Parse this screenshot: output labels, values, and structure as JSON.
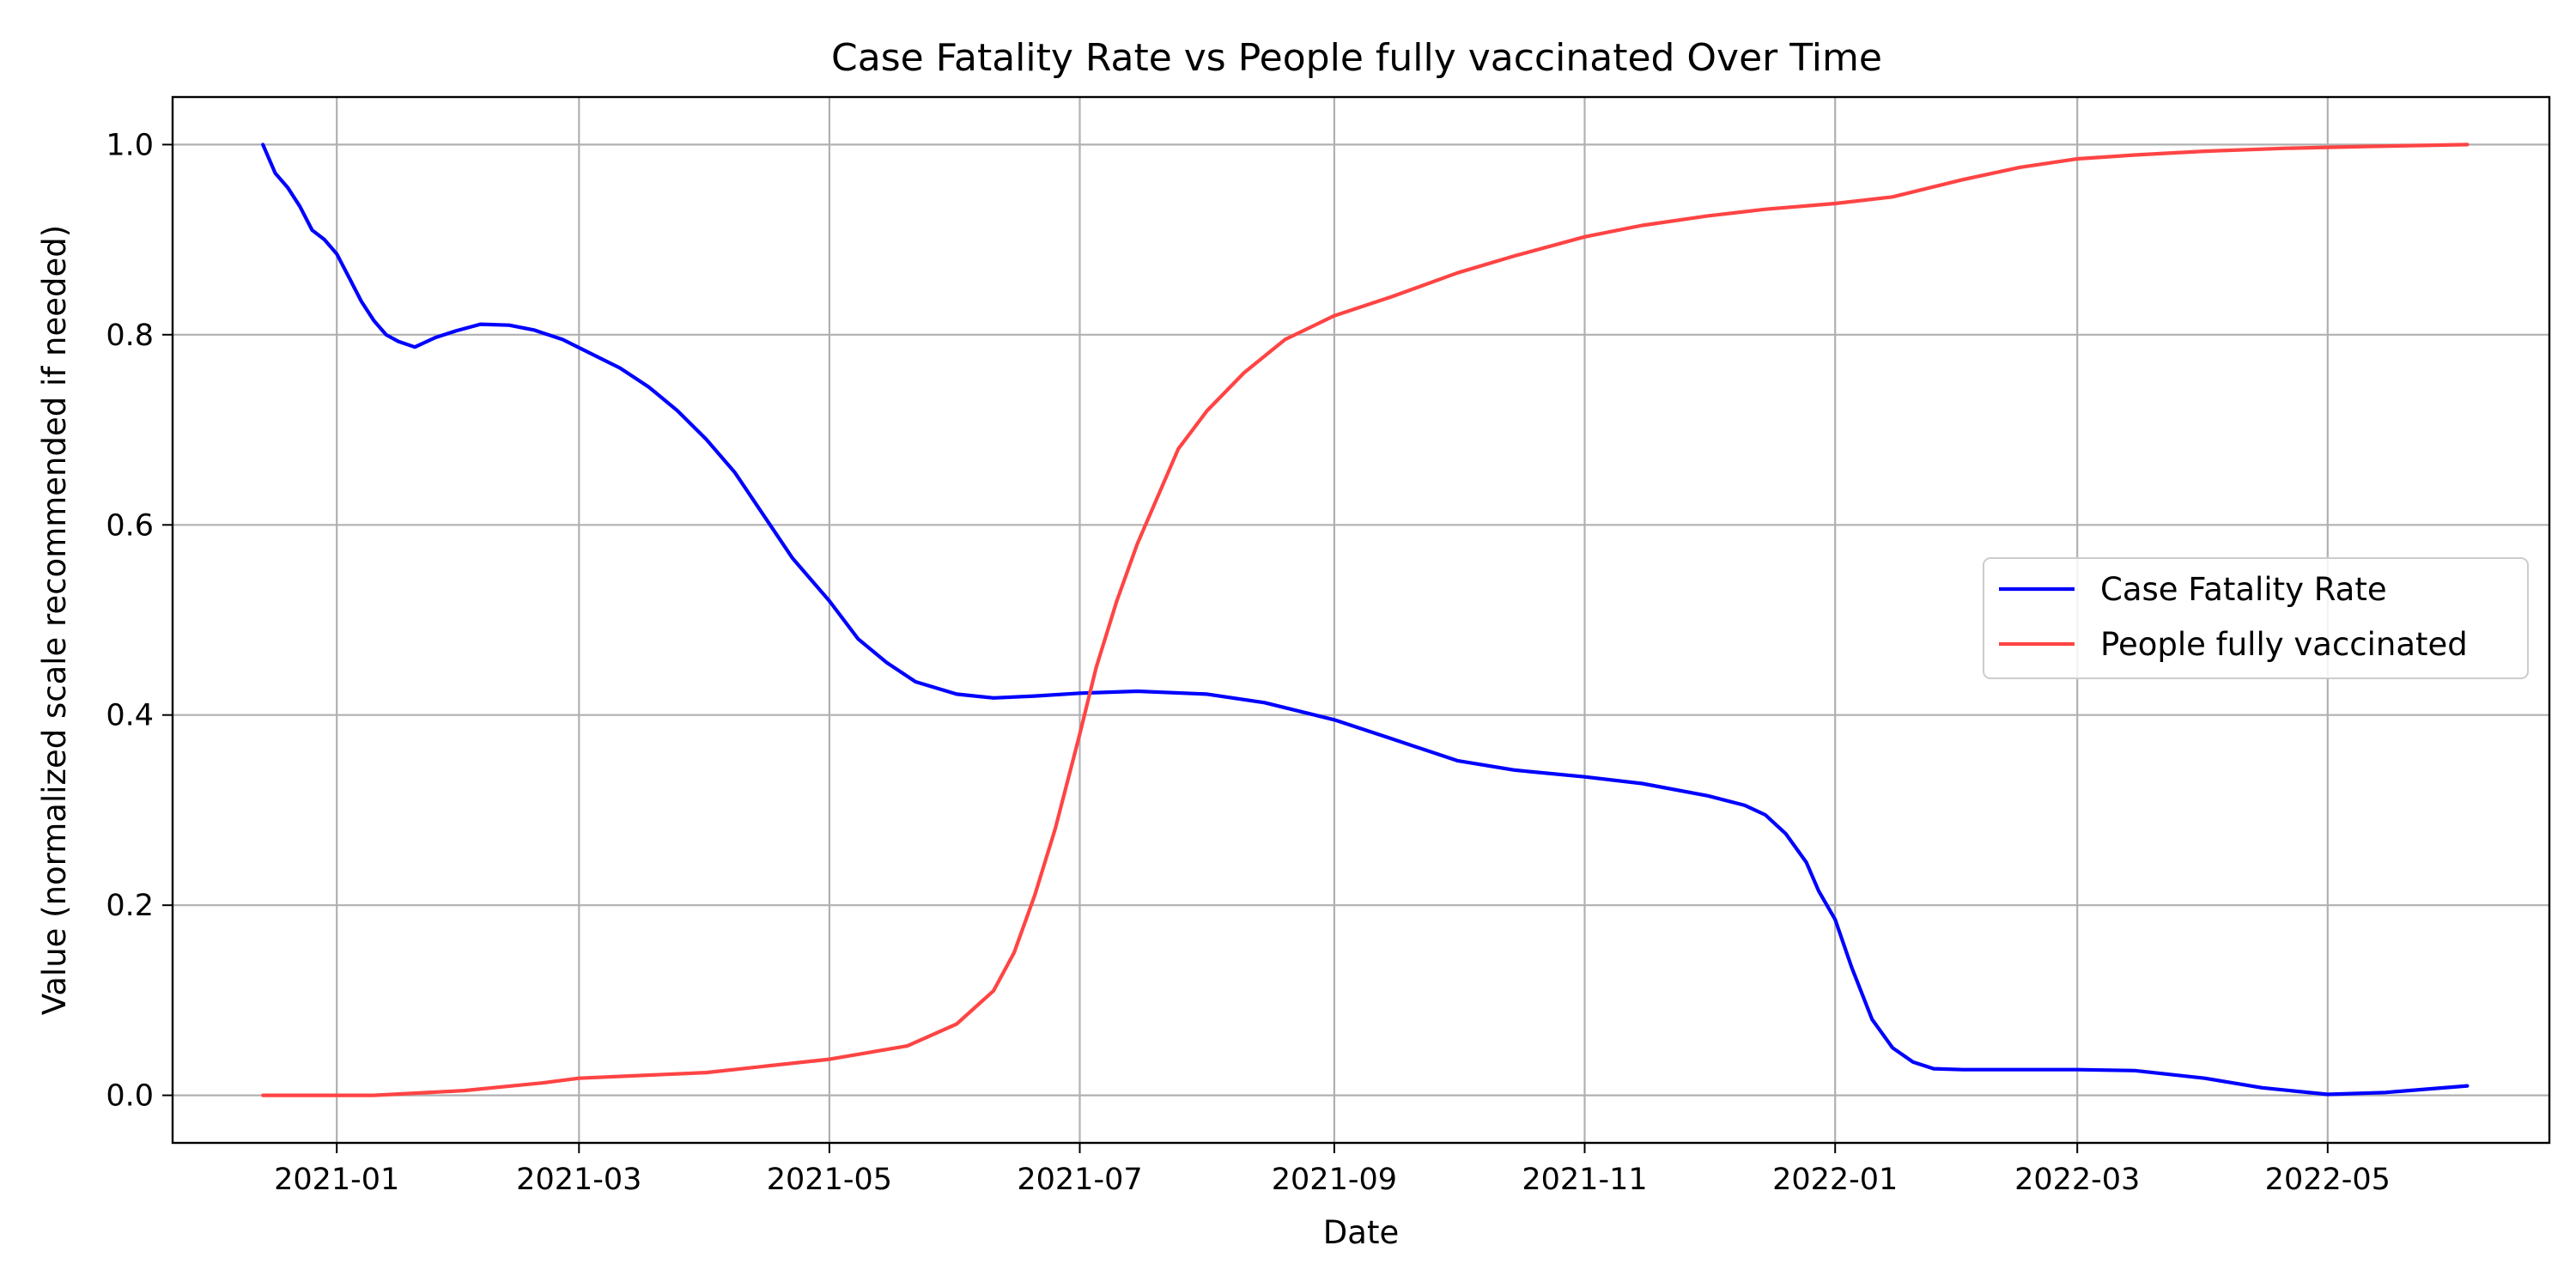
{
  "chart_data": {
    "type": "line",
    "title": "Case Fatality Rate vs People fully vaccinated Over Time",
    "xlabel": "Date",
    "ylabel": "Value (normalized scale recommended if needed)",
    "x_axis": "date",
    "xlim": [
      "2020-11-22",
      "2022-06-24"
    ],
    "ylim": [
      -0.05,
      1.05
    ],
    "x_ticks": [
      "2021-01-01",
      "2021-03-01",
      "2021-05-01",
      "2021-07-01",
      "2021-09-01",
      "2021-11-01",
      "2022-01-01",
      "2022-03-01",
      "2022-05-01"
    ],
    "x_tick_labels": [
      "2021-01",
      "2021-03",
      "2021-05",
      "2021-07",
      "2021-09",
      "2021-11",
      "2022-01",
      "2022-03",
      "2022-05"
    ],
    "y_ticks": [
      0.0,
      0.2,
      0.4,
      0.6,
      0.8,
      1.0
    ],
    "y_tick_labels": [
      "0.0",
      "0.2",
      "0.4",
      "0.6",
      "0.8",
      "1.0"
    ],
    "grid": true,
    "legend_position": "center-right",
    "series": [
      {
        "name": "Case Fatality Rate",
        "color": "#0000ff",
        "points": [
          [
            "2020-12-14",
            1.0
          ],
          [
            "2020-12-17",
            0.97
          ],
          [
            "2020-12-20",
            0.955
          ],
          [
            "2020-12-23",
            0.935
          ],
          [
            "2020-12-26",
            0.91
          ],
          [
            "2020-12-29",
            0.9
          ],
          [
            "2021-01-01",
            0.885
          ],
          [
            "2021-01-04",
            0.86
          ],
          [
            "2021-01-07",
            0.835
          ],
          [
            "2021-01-10",
            0.815
          ],
          [
            "2021-01-13",
            0.8
          ],
          [
            "2021-01-16",
            0.793
          ],
          [
            "2021-01-20",
            0.787
          ],
          [
            "2021-01-25",
            0.797
          ],
          [
            "2021-01-30",
            0.804
          ],
          [
            "2021-02-05",
            0.811
          ],
          [
            "2021-02-12",
            0.81
          ],
          [
            "2021-02-18",
            0.805
          ],
          [
            "2021-02-25",
            0.795
          ],
          [
            "2021-03-04",
            0.78
          ],
          [
            "2021-03-11",
            0.765
          ],
          [
            "2021-03-18",
            0.745
          ],
          [
            "2021-03-25",
            0.72
          ],
          [
            "2021-04-01",
            0.69
          ],
          [
            "2021-04-08",
            0.655
          ],
          [
            "2021-04-15",
            0.61
          ],
          [
            "2021-04-22",
            0.565
          ],
          [
            "2021-05-01",
            0.52
          ],
          [
            "2021-05-08",
            0.48
          ],
          [
            "2021-05-15",
            0.455
          ],
          [
            "2021-05-22",
            0.435
          ],
          [
            "2021-06-01",
            0.422
          ],
          [
            "2021-06-10",
            0.418
          ],
          [
            "2021-06-20",
            0.42
          ],
          [
            "2021-07-01",
            0.423
          ],
          [
            "2021-07-15",
            0.425
          ],
          [
            "2021-08-01",
            0.422
          ],
          [
            "2021-08-15",
            0.413
          ],
          [
            "2021-09-01",
            0.395
          ],
          [
            "2021-09-15",
            0.375
          ],
          [
            "2021-10-01",
            0.352
          ],
          [
            "2021-10-15",
            0.342
          ],
          [
            "2021-11-01",
            0.335
          ],
          [
            "2021-11-15",
            0.328
          ],
          [
            "2021-12-01",
            0.315
          ],
          [
            "2021-12-10",
            0.305
          ],
          [
            "2021-12-15",
            0.295
          ],
          [
            "2021-12-20",
            0.275
          ],
          [
            "2021-12-25",
            0.245
          ],
          [
            "2021-12-28",
            0.215
          ],
          [
            "2022-01-01",
            0.185
          ],
          [
            "2022-01-05",
            0.135
          ],
          [
            "2022-01-10",
            0.08
          ],
          [
            "2022-01-15",
            0.05
          ],
          [
            "2022-01-20",
            0.035
          ],
          [
            "2022-01-25",
            0.028
          ],
          [
            "2022-02-01",
            0.027
          ],
          [
            "2022-02-15",
            0.027
          ],
          [
            "2022-03-01",
            0.027
          ],
          [
            "2022-03-15",
            0.026
          ],
          [
            "2022-04-01",
            0.018
          ],
          [
            "2022-04-15",
            0.008
          ],
          [
            "2022-05-01",
            0.001
          ],
          [
            "2022-05-15",
            0.003
          ],
          [
            "2022-06-04",
            0.01
          ]
        ]
      },
      {
        "name": "People fully vaccinated",
        "color": "#ff4444",
        "points": [
          [
            "2020-12-14",
            0.0
          ],
          [
            "2021-01-10",
            0.0
          ],
          [
            "2021-02-01",
            0.005
          ],
          [
            "2021-02-20",
            0.013
          ],
          [
            "2021-03-01",
            0.018
          ],
          [
            "2021-04-01",
            0.024
          ],
          [
            "2021-05-01",
            0.038
          ],
          [
            "2021-05-20",
            0.052
          ],
          [
            "2021-06-01",
            0.075
          ],
          [
            "2021-06-10",
            0.11
          ],
          [
            "2021-06-15",
            0.15
          ],
          [
            "2021-06-20",
            0.21
          ],
          [
            "2021-06-25",
            0.28
          ],
          [
            "2021-07-01",
            0.38
          ],
          [
            "2021-07-05",
            0.45
          ],
          [
            "2021-07-10",
            0.52
          ],
          [
            "2021-07-15",
            0.58
          ],
          [
            "2021-07-20",
            0.63
          ],
          [
            "2021-07-25",
            0.68
          ],
          [
            "2021-08-01",
            0.72
          ],
          [
            "2021-08-10",
            0.76
          ],
          [
            "2021-08-20",
            0.795
          ],
          [
            "2021-09-01",
            0.82
          ],
          [
            "2021-09-15",
            0.84
          ],
          [
            "2021-10-01",
            0.865
          ],
          [
            "2021-10-15",
            0.883
          ],
          [
            "2021-11-01",
            0.903
          ],
          [
            "2021-11-15",
            0.915
          ],
          [
            "2021-12-01",
            0.925
          ],
          [
            "2021-12-15",
            0.932
          ],
          [
            "2022-01-01",
            0.938
          ],
          [
            "2022-01-15",
            0.945
          ],
          [
            "2022-02-01",
            0.963
          ],
          [
            "2022-02-15",
            0.976
          ],
          [
            "2022-03-01",
            0.985
          ],
          [
            "2022-03-15",
            0.989
          ],
          [
            "2022-04-01",
            0.993
          ],
          [
            "2022-04-20",
            0.996
          ],
          [
            "2022-05-10",
            0.998
          ],
          [
            "2022-06-04",
            1.0
          ]
        ]
      }
    ]
  }
}
